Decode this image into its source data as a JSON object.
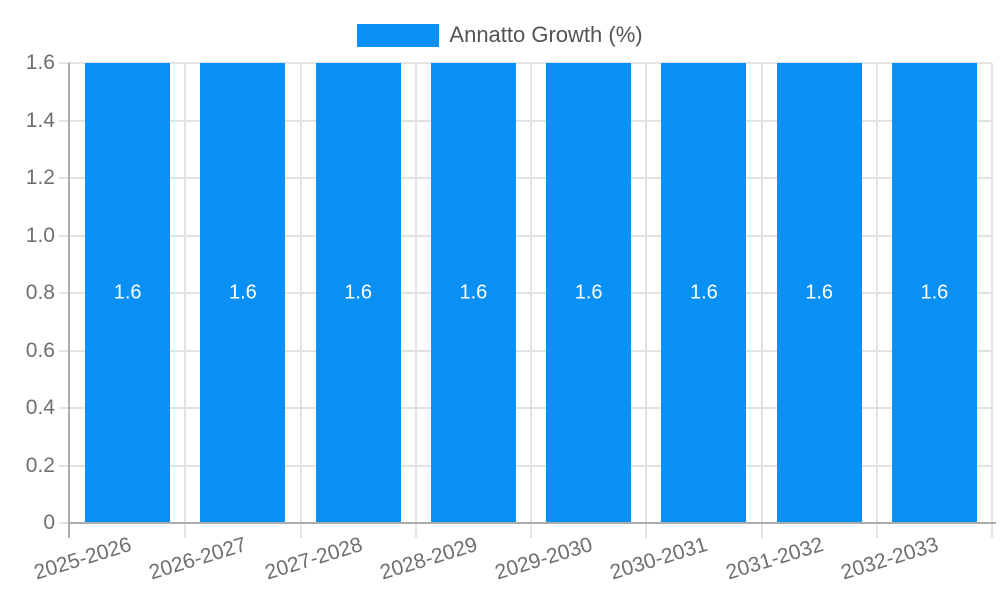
{
  "legend": {
    "label": "Annatto Growth (%)",
    "position": "top"
  },
  "colors": {
    "bar": "#0990F5",
    "grid": "#e2e2e2",
    "axis": "#acacac",
    "tick_text": "#6f6f6f",
    "legend_text": "#545454",
    "value_text": "#ffffff",
    "background": "#ffffff"
  },
  "chart_data": {
    "type": "bar",
    "title": "",
    "categories": [
      "2025-2026",
      "2026-2027",
      "2027-2028",
      "2028-2029",
      "2029-2030",
      "2030-2031",
      "2031-2032",
      "2032-2033"
    ],
    "series": [
      {
        "name": "Annatto Growth (%)",
        "values": [
          1.6,
          1.6,
          1.6,
          1.6,
          1.6,
          1.6,
          1.6,
          1.6
        ]
      }
    ],
    "bar_value_labels": [
      "1.6",
      "1.6",
      "1.6",
      "1.6",
      "1.6",
      "1.6",
      "1.6",
      "1.6"
    ],
    "value_label_position": "center",
    "xlabel": "",
    "ylabel": "",
    "ylim": [
      0,
      1.6
    ],
    "yticks": {
      "values": [
        0,
        0.2,
        0.4,
        0.6,
        0.8,
        1.0,
        1.2,
        1.4,
        1.6
      ],
      "labels": [
        "0",
        "0.2",
        "0.4",
        "0.6",
        "0.8",
        "1.0",
        "1.2",
        "1.4",
        "1.6"
      ]
    },
    "grid": true,
    "x_label_rotation_deg": -17,
    "legend_position": "top"
  }
}
